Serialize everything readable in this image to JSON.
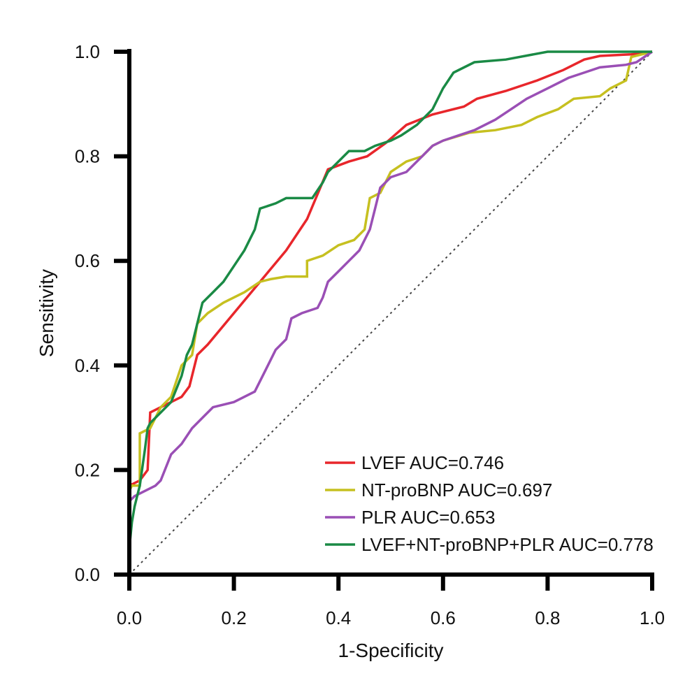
{
  "chart_data": {
    "type": "line",
    "title": "",
    "xlabel": "1-Specificity",
    "ylabel": "Sensitivity",
    "xlim": [
      0,
      1
    ],
    "ylim": [
      0,
      1
    ],
    "xticks": [
      "0.0",
      "0.2",
      "0.4",
      "0.6",
      "0.8",
      "1.0"
    ],
    "yticks": [
      "0.0",
      "0.2",
      "0.4",
      "0.6",
      "0.8",
      "1.0"
    ],
    "grid": false,
    "legend_position": "bottom-right",
    "reference_line": {
      "style": "dotted",
      "from": [
        0,
        0
      ],
      "to": [
        1,
        1
      ],
      "color": "#444444"
    },
    "series": [
      {
        "name": "LVEF AUC=0.746",
        "color": "#e8262b",
        "points": [
          [
            0,
            0
          ],
          [
            0,
            0.17
          ],
          [
            0.02,
            0.18
          ],
          [
            0.035,
            0.2
          ],
          [
            0.04,
            0.31
          ],
          [
            0.06,
            0.32
          ],
          [
            0.08,
            0.33
          ],
          [
            0.1,
            0.34
          ],
          [
            0.115,
            0.36
          ],
          [
            0.13,
            0.42
          ],
          [
            0.15,
            0.44
          ],
          [
            0.2,
            0.5
          ],
          [
            0.25,
            0.56
          ],
          [
            0.3,
            0.62
          ],
          [
            0.34,
            0.68
          ],
          [
            0.38,
            0.775
          ],
          [
            0.42,
            0.79
          ],
          [
            0.455,
            0.8
          ],
          [
            0.49,
            0.825
          ],
          [
            0.53,
            0.86
          ],
          [
            0.58,
            0.88
          ],
          [
            0.64,
            0.895
          ],
          [
            0.665,
            0.91
          ],
          [
            0.72,
            0.925
          ],
          [
            0.78,
            0.945
          ],
          [
            0.83,
            0.965
          ],
          [
            0.87,
            0.985
          ],
          [
            0.9,
            0.992
          ],
          [
            0.96,
            0.995
          ],
          [
            1,
            1
          ]
        ]
      },
      {
        "name": "NT-proBNP AUC=0.697",
        "color": "#c6c020",
        "points": [
          [
            0,
            0
          ],
          [
            0,
            0.16
          ],
          [
            0.005,
            0.17
          ],
          [
            0.02,
            0.17
          ],
          [
            0.02,
            0.27
          ],
          [
            0.04,
            0.28
          ],
          [
            0.05,
            0.3
          ],
          [
            0.06,
            0.32
          ],
          [
            0.08,
            0.34
          ],
          [
            0.1,
            0.4
          ],
          [
            0.12,
            0.42
          ],
          [
            0.13,
            0.48
          ],
          [
            0.15,
            0.5
          ],
          [
            0.18,
            0.52
          ],
          [
            0.22,
            0.54
          ],
          [
            0.25,
            0.56
          ],
          [
            0.27,
            0.565
          ],
          [
            0.3,
            0.57
          ],
          [
            0.34,
            0.57
          ],
          [
            0.34,
            0.6
          ],
          [
            0.37,
            0.61
          ],
          [
            0.4,
            0.63
          ],
          [
            0.43,
            0.64
          ],
          [
            0.45,
            0.66
          ],
          [
            0.46,
            0.72
          ],
          [
            0.48,
            0.73
          ],
          [
            0.5,
            0.77
          ],
          [
            0.53,
            0.79
          ],
          [
            0.56,
            0.8
          ],
          [
            0.57,
            0.81
          ],
          [
            0.58,
            0.82
          ],
          [
            0.6,
            0.83
          ],
          [
            0.65,
            0.845
          ],
          [
            0.7,
            0.85
          ],
          [
            0.75,
            0.86
          ],
          [
            0.78,
            0.875
          ],
          [
            0.82,
            0.89
          ],
          [
            0.85,
            0.91
          ],
          [
            0.9,
            0.915
          ],
          [
            0.92,
            0.93
          ],
          [
            0.95,
            0.945
          ],
          [
            0.96,
            0.99
          ],
          [
            1,
            1
          ]
        ]
      },
      {
        "name": "PLR AUC=0.653",
        "color": "#9a4fb5",
        "points": [
          [
            0,
            0
          ],
          [
            0,
            0.14
          ],
          [
            0.01,
            0.15
          ],
          [
            0.03,
            0.16
          ],
          [
            0.05,
            0.17
          ],
          [
            0.06,
            0.18
          ],
          [
            0.08,
            0.23
          ],
          [
            0.1,
            0.25
          ],
          [
            0.12,
            0.28
          ],
          [
            0.14,
            0.3
          ],
          [
            0.16,
            0.32
          ],
          [
            0.2,
            0.33
          ],
          [
            0.24,
            0.35
          ],
          [
            0.26,
            0.39
          ],
          [
            0.28,
            0.43
          ],
          [
            0.3,
            0.45
          ],
          [
            0.31,
            0.49
          ],
          [
            0.33,
            0.5
          ],
          [
            0.36,
            0.51
          ],
          [
            0.37,
            0.53
          ],
          [
            0.38,
            0.56
          ],
          [
            0.4,
            0.58
          ],
          [
            0.42,
            0.6
          ],
          [
            0.44,
            0.62
          ],
          [
            0.46,
            0.66
          ],
          [
            0.47,
            0.7
          ],
          [
            0.48,
            0.74
          ],
          [
            0.5,
            0.76
          ],
          [
            0.53,
            0.77
          ],
          [
            0.56,
            0.8
          ],
          [
            0.58,
            0.82
          ],
          [
            0.6,
            0.83
          ],
          [
            0.63,
            0.84
          ],
          [
            0.66,
            0.85
          ],
          [
            0.7,
            0.87
          ],
          [
            0.73,
            0.89
          ],
          [
            0.76,
            0.91
          ],
          [
            0.8,
            0.93
          ],
          [
            0.84,
            0.95
          ],
          [
            0.87,
            0.96
          ],
          [
            0.9,
            0.97
          ],
          [
            0.95,
            0.975
          ],
          [
            0.97,
            0.98
          ],
          [
            1,
            1
          ]
        ]
      },
      {
        "name": "LVEF+NT-proBNP+PLR AUC=0.778",
        "color": "#1a8a45",
        "points": [
          [
            0,
            0
          ],
          [
            0,
            0.05
          ],
          [
            0.005,
            0.1
          ],
          [
            0.01,
            0.13
          ],
          [
            0.015,
            0.15
          ],
          [
            0.02,
            0.17
          ],
          [
            0.03,
            0.24
          ],
          [
            0.035,
            0.28
          ],
          [
            0.04,
            0.29
          ],
          [
            0.05,
            0.3
          ],
          [
            0.06,
            0.31
          ],
          [
            0.08,
            0.33
          ],
          [
            0.1,
            0.38
          ],
          [
            0.11,
            0.42
          ],
          [
            0.12,
            0.44
          ],
          [
            0.13,
            0.48
          ],
          [
            0.14,
            0.52
          ],
          [
            0.16,
            0.54
          ],
          [
            0.18,
            0.56
          ],
          [
            0.2,
            0.59
          ],
          [
            0.22,
            0.62
          ],
          [
            0.24,
            0.66
          ],
          [
            0.25,
            0.7
          ],
          [
            0.28,
            0.71
          ],
          [
            0.3,
            0.72
          ],
          [
            0.35,
            0.72
          ],
          [
            0.37,
            0.75
          ],
          [
            0.38,
            0.77
          ],
          [
            0.4,
            0.79
          ],
          [
            0.42,
            0.81
          ],
          [
            0.45,
            0.81
          ],
          [
            0.47,
            0.82
          ],
          [
            0.5,
            0.83
          ],
          [
            0.52,
            0.84
          ],
          [
            0.55,
            0.86
          ],
          [
            0.58,
            0.89
          ],
          [
            0.6,
            0.93
          ],
          [
            0.62,
            0.96
          ],
          [
            0.66,
            0.98
          ],
          [
            0.72,
            0.985
          ],
          [
            0.8,
            1
          ],
          [
            1,
            1
          ]
        ]
      }
    ]
  }
}
